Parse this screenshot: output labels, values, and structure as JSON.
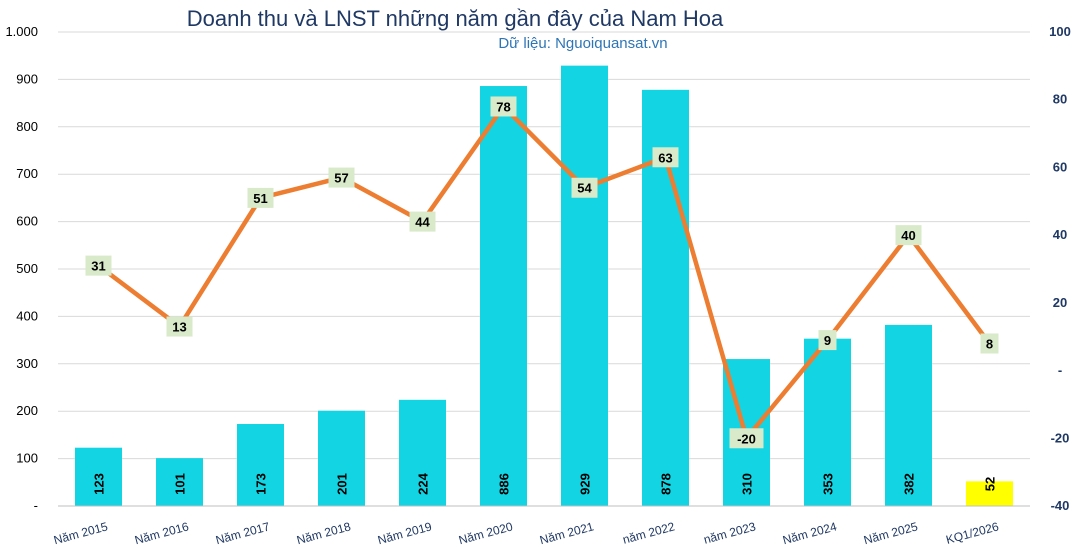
{
  "chart_data": {
    "type": "bar",
    "title": "Doanh thu và LNST những năm gần đây của Nam Hoa",
    "subtitle": "Dữ liệu: Nguoiquansat.vn",
    "categories": [
      "Năm 2015",
      "Năm 2016",
      "Năm 2017",
      "Năm 2018",
      "Năm 2019",
      "Năm 2020",
      "Năm 2021",
      "năm 2022",
      "năm 2023",
      "Năm 2024",
      "Năm 2025",
      "KQ1/2026"
    ],
    "series": [
      {
        "type": "bar",
        "axis": "left",
        "values": [
          123,
          101,
          173,
          201,
          224,
          886,
          929,
          878,
          310,
          353,
          382,
          52
        ],
        "color": "#12d4e2",
        "highlight_last_color": "#ffff00"
      },
      {
        "type": "line",
        "axis": "right",
        "values": [
          31,
          13,
          51,
          57,
          44,
          78,
          54,
          63,
          -20,
          9,
          40,
          8
        ],
        "color": "#ed7d31",
        "label_bg": "#d8eac9"
      }
    ],
    "left_axis": {
      "ylim": [
        0,
        1000
      ],
      "ticks": [
        "-",
        "100",
        "200",
        "300",
        "400",
        "500",
        "600",
        "700",
        "800",
        "900",
        "1.000"
      ]
    },
    "right_axis": {
      "ylim": [
        -40,
        100
      ],
      "ticks": [
        "-40",
        "-20",
        "-",
        "20",
        "40",
        "60",
        "80",
        "100"
      ]
    },
    "grid": true
  }
}
